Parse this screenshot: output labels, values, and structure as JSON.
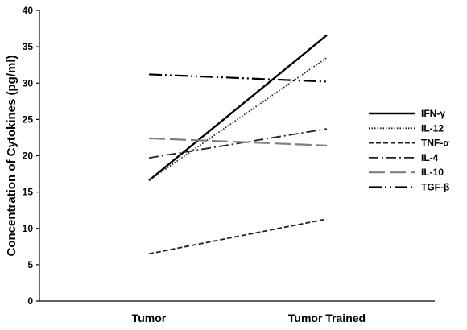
{
  "chart_data": {
    "type": "line",
    "categories": [
      "Tumor",
      "Tumor Trained"
    ],
    "ylabel": "Concentration  of Cytokines (pg/ml)",
    "ylim": [
      0,
      40
    ],
    "yticks": [
      0,
      5,
      10,
      15,
      20,
      25,
      30,
      35,
      40
    ],
    "grid": false,
    "legend_position": "right",
    "series": [
      {
        "name": "IFN-γ",
        "values": [
          16.6,
          36.6
        ],
        "color": "#000000",
        "dash": "solid"
      },
      {
        "name": "IL-12",
        "values": [
          16.6,
          33.5
        ],
        "color": "#222222",
        "dash": "dotted"
      },
      {
        "name": "TNF-α",
        "values": [
          6.5,
          11.3
        ],
        "color": "#222222",
        "dash": "dashed"
      },
      {
        "name": "IL-4",
        "values": [
          19.7,
          23.7
        ],
        "color": "#222222",
        "dash": "dash-dot"
      },
      {
        "name": "IL-10",
        "values": [
          22.4,
          21.4
        ],
        "color": "#808080",
        "dash": "long-dash"
      },
      {
        "name": "TGF-β",
        "values": [
          31.2,
          30.2
        ],
        "color": "#000000",
        "dash": "long-dash-dot-dot"
      }
    ]
  }
}
